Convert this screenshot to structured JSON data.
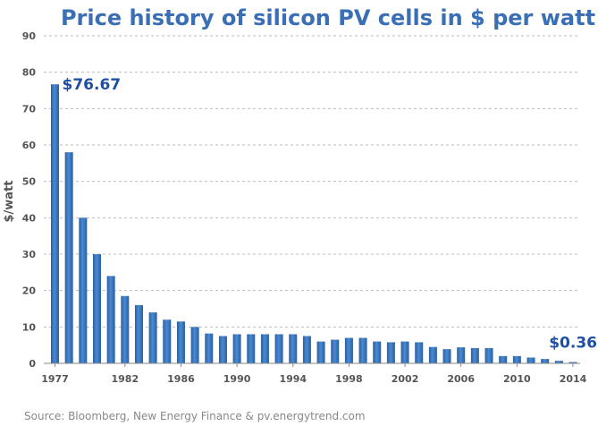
{
  "chart_data": {
    "type": "bar",
    "title": "Price history of silicon PV cells in $ per watt",
    "ylabel": "$/watt",
    "xlabel": "",
    "ylim": [
      0,
      90
    ],
    "yticks": [
      0,
      10,
      20,
      30,
      40,
      50,
      60,
      70,
      80,
      90
    ],
    "x_tick_labels": [
      "1977",
      "1982",
      "1986",
      "1990",
      "1994",
      "1998",
      "2002",
      "2006",
      "2010",
      "2014"
    ],
    "grid": true,
    "categories": [
      1977,
      1978,
      1979,
      1980,
      1981,
      1982,
      1983,
      1984,
      1985,
      1986,
      1987,
      1988,
      1989,
      1990,
      1991,
      1992,
      1993,
      1994,
      1995,
      1996,
      1997,
      1998,
      1999,
      2000,
      2001,
      2002,
      2003,
      2004,
      2005,
      2006,
      2007,
      2008,
      2009,
      2010,
      2011,
      2012,
      2013,
      2014
    ],
    "values": [
      76.67,
      58,
      40,
      30,
      24,
      18.5,
      16,
      14,
      12,
      11.5,
      10,
      8.2,
      7.5,
      8,
      8,
      8,
      8,
      8,
      7.5,
      6,
      6.5,
      7,
      7,
      6,
      5.8,
      6,
      5.8,
      4.5,
      3.9,
      4.4,
      4.2,
      4.2,
      2,
      2,
      1.6,
      1.2,
      0.7,
      0.36
    ],
    "annotations": [
      {
        "text": "$76.67",
        "category": 1977
      },
      {
        "text": "$0.36",
        "category": 2014
      }
    ],
    "source": "Source: Bloomberg, New Energy Finance & pv.energytrend.com",
    "colors": {
      "bar_light": "#4a8ad4",
      "bar_dark": "#2a5f9f",
      "title": "#3a6fb5",
      "annotation": "#1f4fa3",
      "grid": "#bbbbbb",
      "axis": "#888888"
    }
  }
}
